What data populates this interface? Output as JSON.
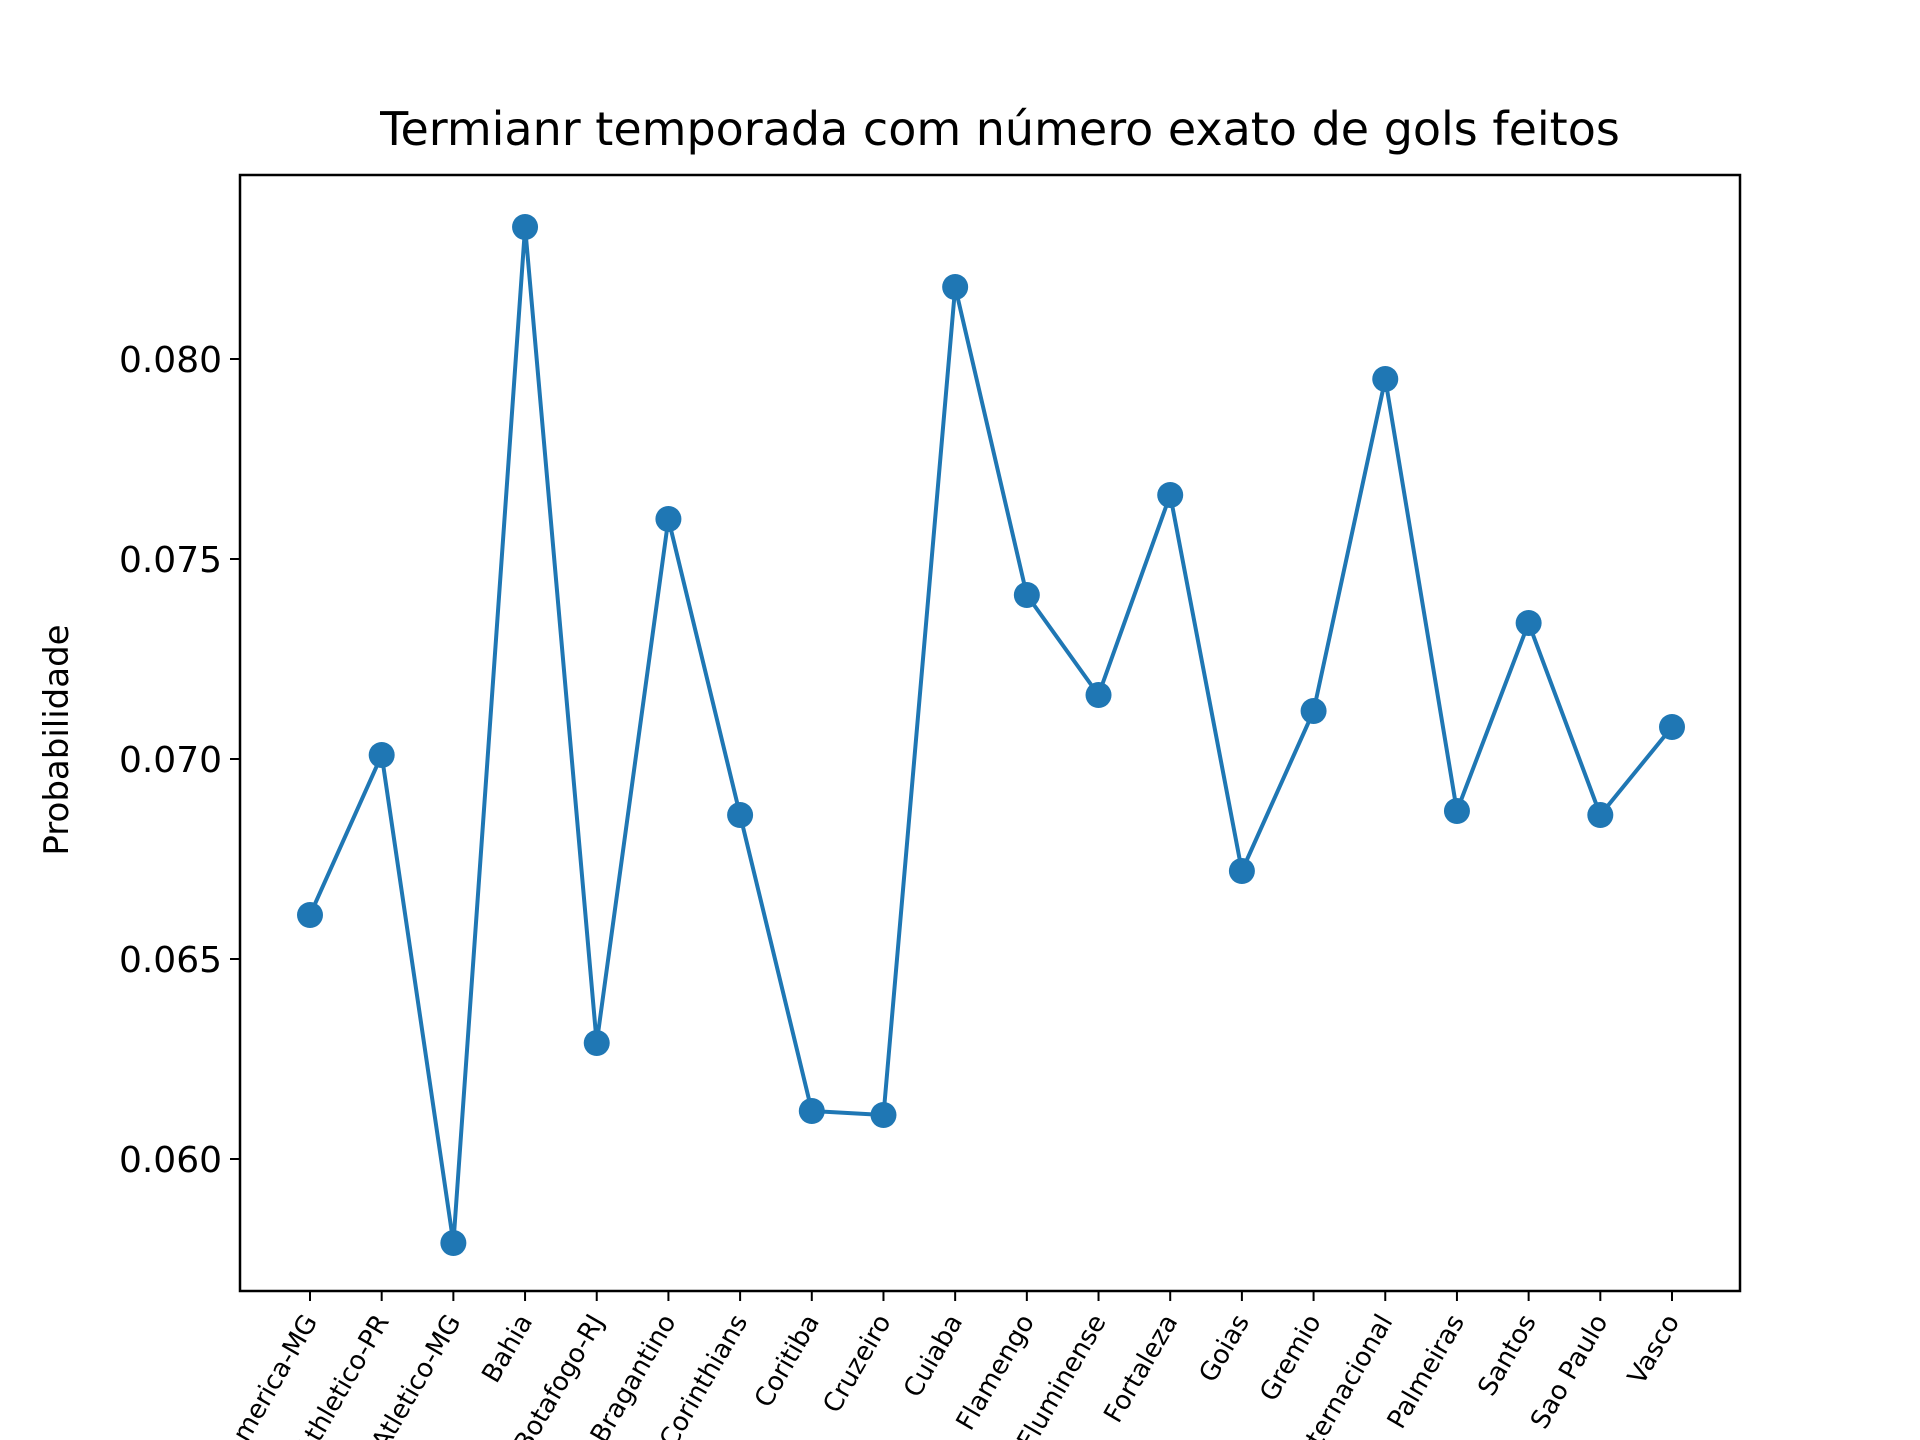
{
  "chart_data": {
    "type": "line",
    "title": "Termianr temporada com número exato de gols feitos",
    "xlabel": "",
    "ylabel": "Probabilidade",
    "categories": [
      "America-MG",
      "Athletico-PR",
      "Atletico-MG",
      "Bahia",
      "Botafogo-RJ",
      "Bragantino",
      "Corinthians",
      "Coritiba",
      "Cruzeiro",
      "Cuiaba",
      "Flamengo",
      "Fluminense",
      "Fortaleza",
      "Goias",
      "Gremio",
      "Internacional",
      "Palmeiras",
      "Santos",
      "Sao Paulo",
      "Vasco"
    ],
    "values": [
      0.0661,
      0.0701,
      0.0579,
      0.0833,
      0.0629,
      0.076,
      0.0686,
      0.0612,
      0.0611,
      0.0818,
      0.0741,
      0.0716,
      0.0766,
      0.0672,
      0.0712,
      0.0795,
      0.0687,
      0.0734,
      0.0686,
      0.0708
    ],
    "yticks": [
      "0.060",
      "0.065",
      "0.070",
      "0.075",
      "0.080"
    ],
    "ylim": [
      0.0567,
      0.0846
    ],
    "grid": false,
    "legend": "none",
    "color": "#1f77b4"
  }
}
